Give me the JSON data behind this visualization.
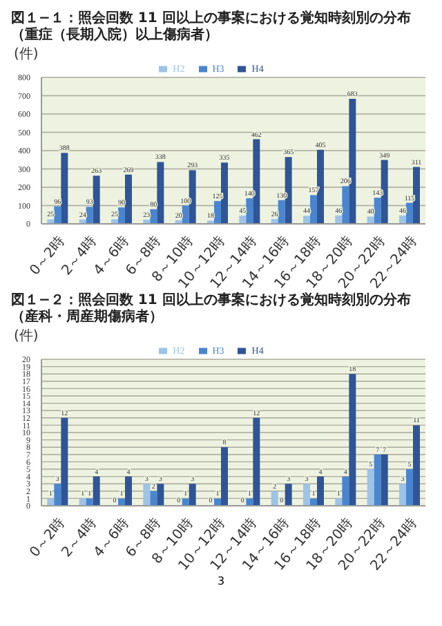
{
  "chart_data": [
    {
      "type": "bar",
      "title": "図１−１：照会回数 11 回以上の事案における覚知時刻別の分布（重症（長期入院）以上傷病者）",
      "ylabel": "(件)",
      "categories": [
        "0～2時",
        "2～4時",
        "4～6時",
        "6～8時",
        "8～10時",
        "10～12時",
        "12～14時",
        "14～16時",
        "16～18時",
        "18～20時",
        "20～22時",
        "22～24時"
      ],
      "series": [
        {
          "name": "H2",
          "color": "#9dc3e6",
          "values": [
            25,
            24,
            25,
            23,
            20,
            18,
            45,
            26,
            44,
            46,
            40,
            46
          ]
        },
        {
          "name": "H3",
          "color": "#4a86d0",
          "values": [
            96,
            93,
            90,
            80,
            100,
            125,
            140,
            130,
            157,
            206,
            143,
            115
          ]
        },
        {
          "name": "H4",
          "color": "#2f5597",
          "values": [
            388,
            263,
            269,
            338,
            293,
            335,
            462,
            365,
            405,
            683,
            349,
            311
          ]
        }
      ],
      "ylim": [
        0,
        800
      ],
      "yticks": [
        0,
        100,
        200,
        300,
        400,
        500,
        600,
        700,
        800
      ],
      "grid": "y",
      "legend": "top",
      "data_labels": true
    },
    {
      "type": "bar",
      "title": "図１−２：照会回数 11 回以上の事案における覚知時刻別の分布（産科・周産期傷病者）",
      "ylabel": "(件)",
      "categories": [
        "0～2時",
        "2～4時",
        "4～6時",
        "6～8時",
        "8～10時",
        "10～12時",
        "12～14時",
        "14～16時",
        "16～18時",
        "18～20時",
        "20～22時",
        "22～24時"
      ],
      "series": [
        {
          "name": "H2",
          "color": "#9dc3e6",
          "values": [
            1,
            1,
            0,
            3,
            0,
            0,
            0,
            2,
            3,
            1,
            5,
            3
          ]
        },
        {
          "name": "H3",
          "color": "#4a86d0",
          "values": [
            3,
            1,
            1,
            2,
            1,
            1,
            1,
            0,
            1,
            4,
            7,
            5
          ]
        },
        {
          "name": "H4",
          "color": "#2f5597",
          "values": [
            12,
            4,
            4,
            3,
            3,
            8,
            12,
            3,
            4,
            18,
            7,
            11
          ]
        }
      ],
      "ylim": [
        0,
        20
      ],
      "yticks": [
        0,
        1,
        2,
        3,
        4,
        5,
        6,
        7,
        8,
        9,
        10,
        11,
        12,
        13,
        14,
        15,
        16,
        17,
        18,
        19,
        20
      ],
      "grid": "y",
      "legend": "top",
      "data_labels": true,
      "annotations": [
        "3"
      ]
    }
  ]
}
